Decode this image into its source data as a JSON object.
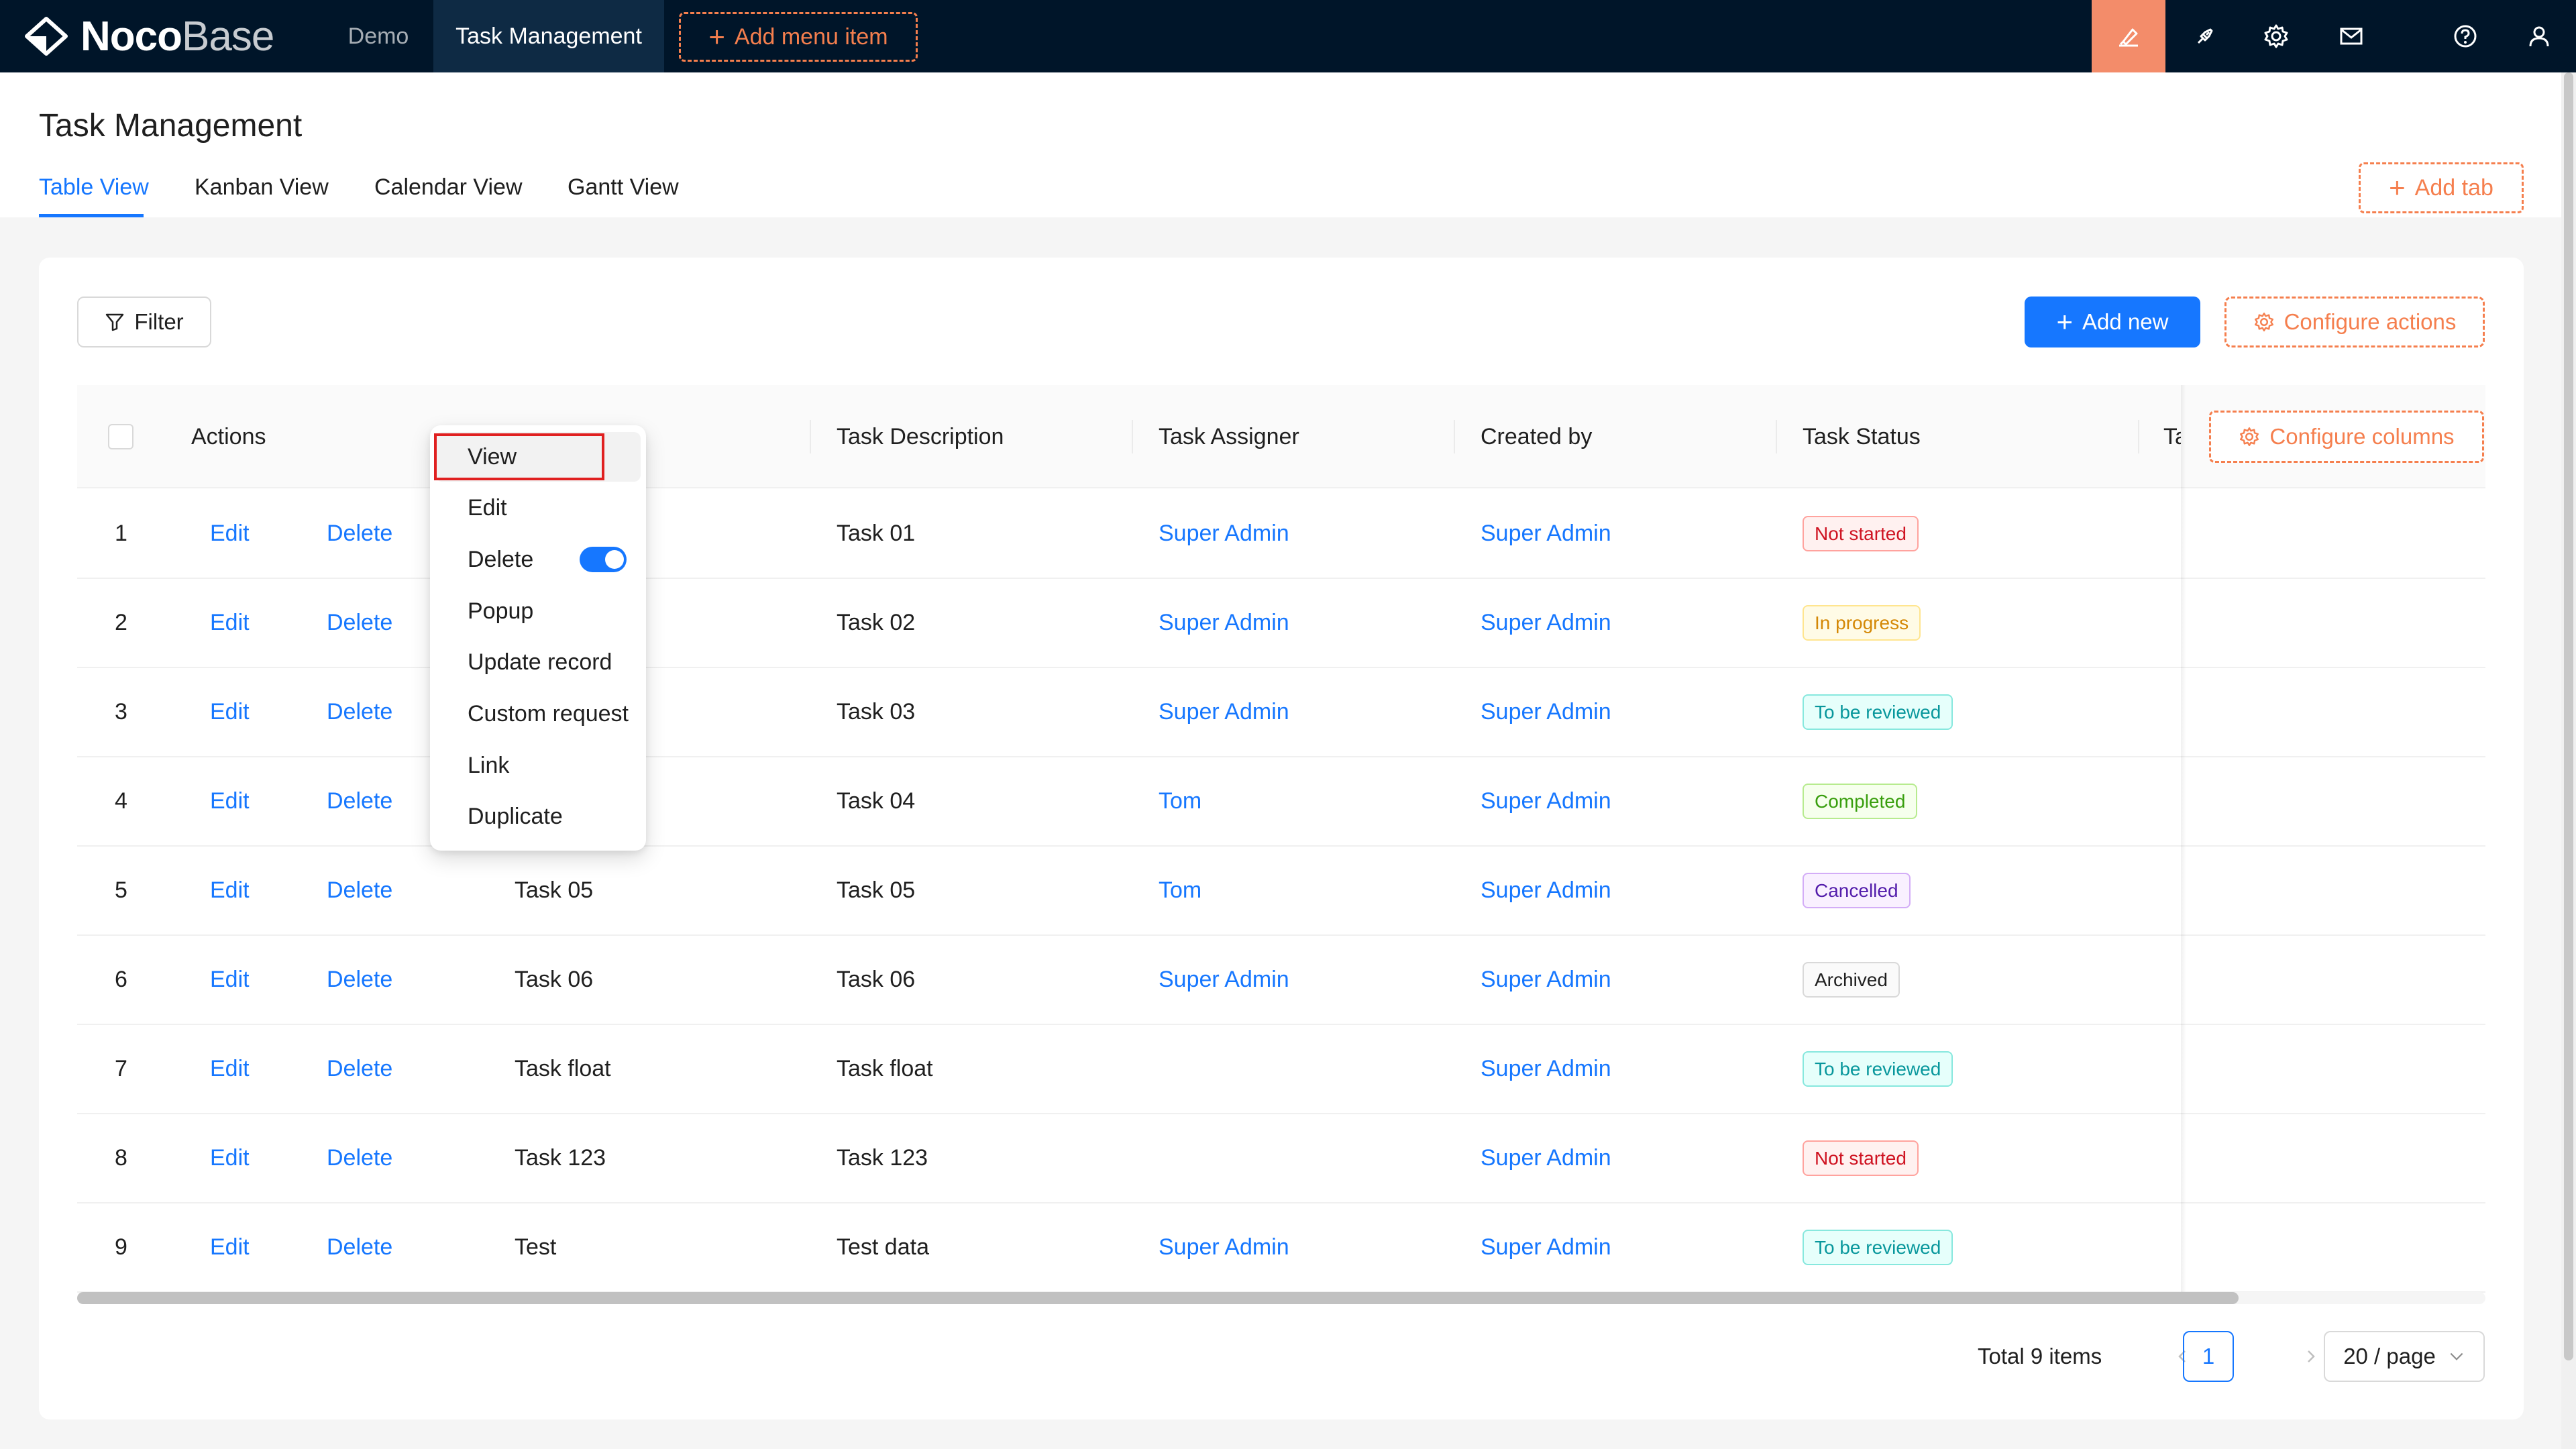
{
  "brand": {
    "bold": "Noco",
    "light": "Base"
  },
  "topnav": {
    "items": [
      {
        "label": "Demo"
      },
      {
        "label": "Task Management"
      }
    ],
    "add_menu_item": "Add menu item",
    "icons": [
      "highlighter-icon",
      "plugin-icon",
      "settings-gear-icon",
      "mail-icon",
      "help-icon",
      "user-icon"
    ],
    "active_color": "#f38c6a"
  },
  "page": {
    "title": "Task Management",
    "tabs": [
      "Table View",
      "Kanban View",
      "Calendar View",
      "Gantt View"
    ],
    "active_tab": "Table View",
    "add_tab": "Add tab"
  },
  "toolbar": {
    "filter": "Filter",
    "add_new": "Add new",
    "configure_actions": "Configure actions"
  },
  "table": {
    "columns": [
      "Actions",
      "Task Description",
      "Task Assigner",
      "Created by",
      "Task Status",
      "Ta"
    ],
    "configure_columns": "Configure columns",
    "row_action_edit": "Edit",
    "row_action_delete": "Delete",
    "rows": [
      {
        "no": "1",
        "name": "",
        "description": "Task 01",
        "assigner": "Super Admin",
        "created_by": "Super Admin",
        "status": "Not started",
        "status_color": "red"
      },
      {
        "no": "2",
        "name": "",
        "description": "Task 02",
        "assigner": "Super Admin",
        "created_by": "Super Admin",
        "status": "In progress",
        "status_color": "gold"
      },
      {
        "no": "3",
        "name": "",
        "description": "Task 03",
        "assigner": "Super Admin",
        "created_by": "Super Admin",
        "status": "To be reviewed",
        "status_color": "cyan"
      },
      {
        "no": "4",
        "name": "",
        "description": "Task 04",
        "assigner": "Tom",
        "created_by": "Super Admin",
        "status": "Completed",
        "status_color": "green"
      },
      {
        "no": "5",
        "name": "Task 05",
        "description": "Task 05",
        "assigner": "Tom",
        "created_by": "Super Admin",
        "status": "Cancelled",
        "status_color": "purple"
      },
      {
        "no": "6",
        "name": "Task 06",
        "description": "Task 06",
        "assigner": "Super Admin",
        "created_by": "Super Admin",
        "status": "Archived",
        "status_color": "default"
      },
      {
        "no": "7",
        "name": "Task float",
        "description": "Task float",
        "assigner": "",
        "created_by": "Super Admin",
        "status": "To be reviewed",
        "status_color": "cyan"
      },
      {
        "no": "8",
        "name": "Task 123",
        "description": "Task 123",
        "assigner": "",
        "created_by": "Super Admin",
        "status": "Not started",
        "status_color": "red"
      },
      {
        "no": "9",
        "name": "Test",
        "description": "Test data",
        "assigner": "Super Admin",
        "created_by": "Super Admin",
        "status": "To be reviewed",
        "status_color": "cyan"
      }
    ]
  },
  "dropdown": {
    "items": [
      "View",
      "Edit",
      "Delete",
      "Popup",
      "Update record",
      "Custom request",
      "Link",
      "Duplicate"
    ],
    "highlighted": "View",
    "delete_toggle_on": true
  },
  "pagination": {
    "total": "Total 9 items",
    "current_page": "1",
    "page_size": "20 / page"
  }
}
